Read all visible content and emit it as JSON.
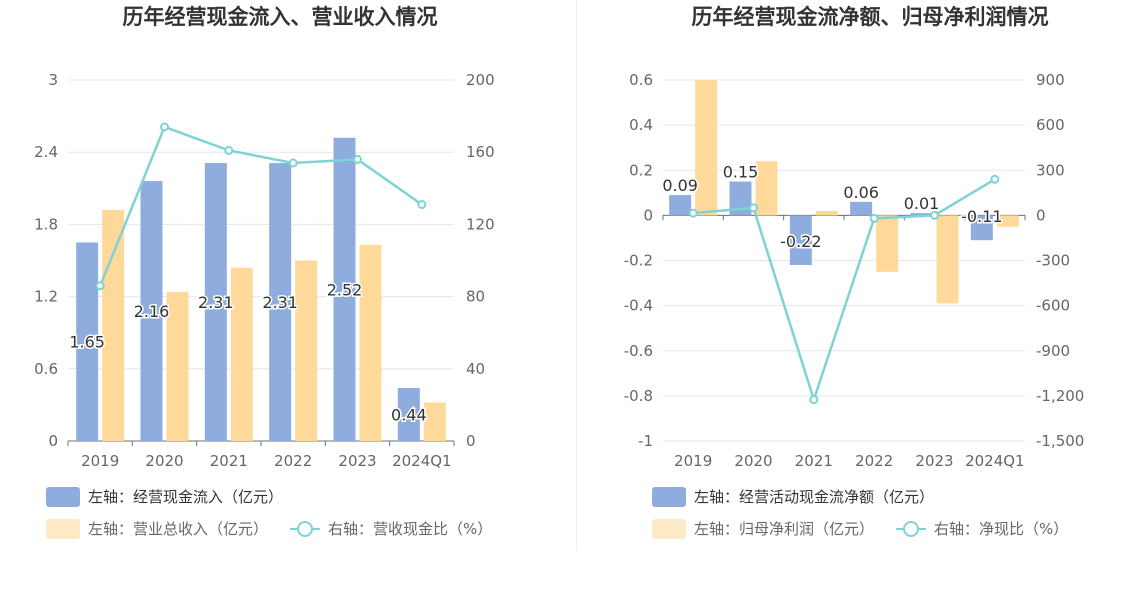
{
  "chart_data": [
    {
      "type": "bar",
      "title": "历年经营现金流入、营业收入情况",
      "categories": [
        "2019",
        "2020",
        "2021",
        "2022",
        "2023",
        "2024Q1"
      ],
      "left_axis": {
        "ylim": [
          0,
          3
        ],
        "ticks": [
          "0",
          "0.6",
          "1.2",
          "1.8",
          "2.4",
          "3"
        ]
      },
      "right_axis": {
        "ylim": [
          0,
          200
        ],
        "ticks": [
          "0",
          "40",
          "80",
          "120",
          "160",
          "200"
        ]
      },
      "series": [
        {
          "name": "左轴：经营现金流入（亿元）",
          "type": "bar",
          "axis": "left",
          "values": [
            1.65,
            2.16,
            2.31,
            2.31,
            2.52,
            0.44
          ],
          "labels": [
            "1.65",
            "2.16",
            "2.31",
            "2.31",
            "2.52",
            "0.44"
          ],
          "color": "#8eadde"
        },
        {
          "name": "左轴：营业总收入（亿元）",
          "type": "bar",
          "axis": "left",
          "values": [
            1.92,
            1.24,
            1.44,
            1.5,
            1.63,
            0.32
          ],
          "color": "#ffd99a"
        },
        {
          "name": "右轴：营收现金比（%）",
          "type": "line",
          "axis": "right",
          "values": [
            86,
            174,
            161,
            154,
            156,
            131
          ],
          "color": "#7fd3d6"
        }
      ],
      "grid": true,
      "legend": "bottom-left"
    },
    {
      "type": "bar",
      "title": "历年经营现金流净额、归母净利润情况",
      "categories": [
        "2019",
        "2020",
        "2021",
        "2022",
        "2023",
        "2024Q1"
      ],
      "left_axis": {
        "ylim": [
          -1,
          0.6
        ],
        "ticks": [
          "-1",
          "-0.8",
          "-0.6",
          "-0.4",
          "-0.2",
          "0",
          "0.2",
          "0.4",
          "0.6"
        ]
      },
      "right_axis": {
        "ylim": [
          -1500,
          900
        ],
        "ticks": [
          "-1,500",
          "-1,200",
          "-900",
          "-600",
          "-300",
          "0",
          "300",
          "600",
          "900"
        ]
      },
      "series": [
        {
          "name": "左轴：经营活动现金流净额（亿元）",
          "type": "bar",
          "axis": "left",
          "values": [
            0.09,
            0.15,
            -0.22,
            0.06,
            0.01,
            -0.11
          ],
          "labels": [
            "0.09",
            "0.15",
            "-0.22",
            "0.06",
            "0.01",
            "-0.11"
          ],
          "color": "#8eadde"
        },
        {
          "name": "左轴：归母净利润（亿元）",
          "type": "bar",
          "axis": "left",
          "values": [
            0.6,
            0.24,
            0.02,
            -0.25,
            -0.39,
            -0.05
          ],
          "color": "#ffd99a"
        },
        {
          "name": "右轴：净现比（%）",
          "type": "line",
          "axis": "right",
          "values": [
            15,
            50,
            -1225,
            -20,
            0,
            240
          ],
          "color": "#7fd3d6"
        }
      ],
      "grid": true,
      "legend": "bottom-left"
    }
  ]
}
